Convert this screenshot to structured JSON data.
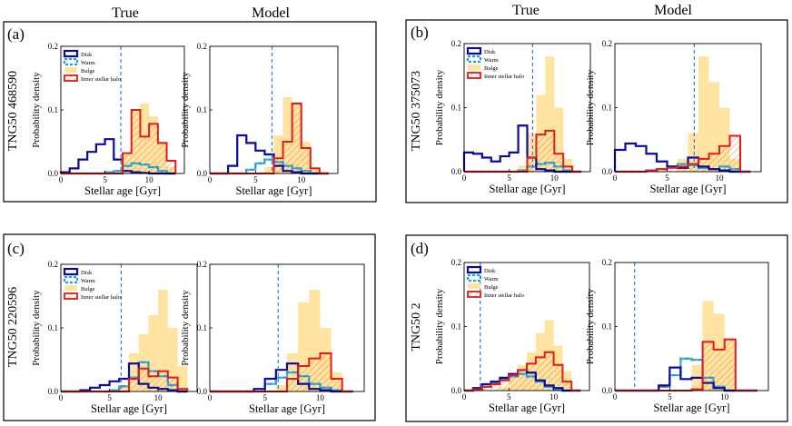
{
  "column_headers": [
    {
      "true": "True",
      "model": "Model"
    },
    {
      "true": "True",
      "model": "Model"
    }
  ],
  "colors": {
    "disk": "#0a0a9e",
    "warm": "#1e9fe8",
    "bulge": "#ffe3a0",
    "halo": "#e51a1a",
    "cut": "#3a7bd5",
    "teal": "#4aa3a0"
  },
  "chart_data": [
    {
      "panel": "(a)",
      "galaxy": "TNG50 468590",
      "type": "histogram",
      "xlabel": "Stellar age [Gyr]",
      "ylabel": "Probability density",
      "xlim": [
        0,
        14
      ],
      "ylim": [
        0,
        0.2
      ],
      "xticks": [
        "0",
        "5",
        "10"
      ],
      "yticks": [
        "0.0",
        "0.1",
        "0.2"
      ],
      "legend": [
        "Disk",
        "Warm",
        "Bulge",
        "Inner stellar halo"
      ],
      "bin_edges": [
        0,
        1,
        2,
        3,
        4,
        5,
        6,
        7,
        8,
        9,
        10,
        11,
        12,
        13
      ],
      "true": {
        "cut": 6.8,
        "disk": [
          0.002,
          0.008,
          0.022,
          0.034,
          0.046,
          0.054,
          0.022,
          0.004,
          0.002,
          0.001,
          0,
          0,
          0
        ],
        "warm": [
          0,
          0,
          0,
          0,
          0,
          0.002,
          0.004,
          0.012,
          0.016,
          0.014,
          0.01,
          0.004,
          0
        ],
        "bulge": [
          0,
          0,
          0,
          0,
          0,
          0,
          0.005,
          0.03,
          0.1,
          0.11,
          0.09,
          0.05,
          0.01
        ],
        "halo": [
          0,
          0,
          0,
          0,
          0,
          0,
          0,
          0.032,
          0.1,
          0.058,
          0.078,
          0.048,
          0.02
        ]
      },
      "model": {
        "cut": 6.8,
        "disk": [
          0,
          0,
          0.012,
          0.06,
          0.048,
          0.036,
          0.03,
          0.012,
          0.004,
          0.002,
          0,
          0,
          0
        ],
        "warm": [
          0,
          0,
          0,
          0,
          0.006,
          0.016,
          0.022,
          0.018,
          0.012,
          0.008,
          0.004,
          0,
          0
        ],
        "bulge": [
          0,
          0,
          0,
          0,
          0,
          0,
          0.01,
          0.06,
          0.12,
          0.11,
          0.05,
          0.01,
          0
        ],
        "halo": [
          0,
          0,
          0,
          0,
          0,
          0,
          0,
          0.024,
          0.05,
          0.11,
          0.04,
          0.008,
          0
        ]
      }
    },
    {
      "panel": "(b)",
      "galaxy": "TNG50 375073",
      "type": "histogram",
      "xlabel": "Stellar age [Gyr]",
      "ylabel": "Probability density",
      "xlim": [
        0,
        14
      ],
      "ylim": [
        0,
        0.2
      ],
      "xticks": [
        "0",
        "5",
        "10"
      ],
      "yticks": [
        "0.0",
        "0.1",
        "0.2"
      ],
      "legend": [
        "Disk",
        "Warm",
        "Bulge",
        "Inner stellar halo"
      ],
      "bin_edges": [
        0,
        1,
        2,
        3,
        4,
        5,
        6,
        7,
        8,
        9,
        10,
        11,
        12,
        13
      ],
      "true": {
        "cut": 7.6,
        "disk": [
          0.03,
          0.028,
          0.022,
          0.016,
          0.024,
          0.03,
          0.072,
          0.022,
          0.004,
          0.002,
          0,
          0,
          0
        ],
        "warm": [
          0,
          0,
          0,
          0,
          0,
          0,
          0.002,
          0.008,
          0.012,
          0.014,
          0.008,
          0.002,
          0
        ],
        "bulge": [
          0,
          0,
          0,
          0,
          0,
          0,
          0.01,
          0.06,
          0.12,
          0.18,
          0.1,
          0.02,
          0
        ],
        "halo": [
          0,
          0,
          0,
          0,
          0,
          0,
          0,
          0.022,
          0.058,
          0.064,
          0.028,
          0.008,
          0
        ]
      },
      "model": {
        "cut": 7.6,
        "disk": [
          0.034,
          0.044,
          0.04,
          0.028,
          0.016,
          0.008,
          0.006,
          0.022,
          0.008,
          0.004,
          0.002,
          0,
          0
        ],
        "warm": [
          0,
          0,
          0,
          0.002,
          0.004,
          0.008,
          0.012,
          0.01,
          0.006,
          0.004,
          0.008,
          0.004,
          0
        ],
        "bulge": [
          0,
          0,
          0,
          0,
          0,
          0,
          0.02,
          0.06,
          0.18,
          0.14,
          0.1,
          0.02,
          0
        ],
        "halo": [
          0,
          0,
          0,
          0.002,
          0.004,
          0.006,
          0.008,
          0.012,
          0.02,
          0.028,
          0.04,
          0.056,
          0
        ]
      }
    },
    {
      "panel": "(c)",
      "galaxy": "TNG50 220596",
      "type": "histogram",
      "xlabel": "Stellar age [Gyr]",
      "ylabel": "Probability density",
      "xlim": [
        0,
        14
      ],
      "ylim": [
        0,
        0.2
      ],
      "xticks": [
        "0",
        "5",
        "10"
      ],
      "yticks": [
        "0.0",
        "0.1",
        "0.2"
      ],
      "legend": [
        "Disk",
        "Warm",
        "Bulge",
        "Inner stellar halo"
      ],
      "bin_edges": [
        0,
        1,
        2,
        3,
        4,
        5,
        6,
        7,
        8,
        9,
        10,
        11,
        12,
        13
      ],
      "true": {
        "cut": 6.2,
        "disk": [
          0,
          0,
          0.002,
          0.006,
          0.01,
          0.016,
          0.02,
          0.044,
          0.012,
          0.006,
          0.004,
          0.002,
          0
        ],
        "warm": [
          0,
          0,
          0,
          0,
          0,
          0.002,
          0.008,
          0.022,
          0.046,
          0.032,
          0.024,
          0.01,
          0
        ],
        "bulge": [
          0,
          0,
          0,
          0,
          0,
          0,
          0.01,
          0.06,
          0.09,
          0.12,
          0.16,
          0.1,
          0.04
        ],
        "halo": [
          0,
          0,
          0,
          0,
          0,
          0,
          0,
          0.02,
          0.036,
          0.024,
          0.032,
          0.022,
          0.004
        ]
      },
      "model": {
        "cut": 6.2,
        "disk": [
          0,
          0,
          0,
          0,
          0.004,
          0.02,
          0.034,
          0.044,
          0.012,
          0.004,
          0.002,
          0,
          0
        ],
        "warm": [
          0,
          0,
          0,
          0,
          0,
          0.012,
          0.022,
          0.03,
          0.024,
          0.012,
          0.006,
          0.002,
          0
        ],
        "bulge": [
          0,
          0,
          0,
          0,
          0,
          0,
          0.01,
          0.06,
          0.14,
          0.16,
          0.1,
          0.03,
          0
        ],
        "halo": [
          0,
          0,
          0,
          0,
          0,
          0,
          0,
          0.02,
          0.04,
          0.052,
          0.06,
          0.02,
          0
        ]
      }
    },
    {
      "panel": "(d)",
      "galaxy": "TNG50 2",
      "type": "histogram",
      "xlabel": "Stellar age [Gyr]",
      "ylabel": "Probability density",
      "xlim": [
        0,
        14
      ],
      "ylim": [
        0,
        0.2
      ],
      "xticks": [
        "0",
        "5",
        "10"
      ],
      "yticks": [
        "0.0",
        "0.1",
        "0.2"
      ],
      "legend": [
        "Disk",
        "Warm",
        "Bulge",
        "Inner stellar halo"
      ],
      "bin_edges": [
        0,
        1,
        2,
        3,
        4,
        5,
        6,
        7,
        8,
        9,
        10,
        11,
        12,
        13
      ],
      "true": {
        "cut": 1.8,
        "disk": [
          0,
          0.004,
          0.01,
          0.014,
          0.02,
          0.026,
          0.032,
          0.028,
          0.016,
          0.008,
          0.004,
          0,
          0
        ],
        "warm": [
          0,
          0.002,
          0.006,
          0.012,
          0.018,
          0.022,
          0.026,
          0.022,
          0.014,
          0.006,
          0.002,
          0,
          0
        ],
        "bulge": [
          0,
          0,
          0,
          0,
          0.006,
          0.02,
          0.04,
          0.06,
          0.09,
          0.11,
          0.07,
          0.03,
          0
        ],
        "halo": [
          0,
          0.002,
          0.006,
          0.01,
          0.016,
          0.024,
          0.032,
          0.042,
          0.052,
          0.06,
          0.04,
          0.014,
          0
        ]
      },
      "model": {
        "cut": 1.8,
        "disk": [
          0,
          0,
          0,
          0,
          0.008,
          0.036,
          0.018,
          0.02,
          0.012,
          0.004,
          0,
          0,
          0
        ],
        "warm": [
          0,
          0,
          0,
          0,
          0.006,
          0.024,
          0.05,
          0.048,
          0.02,
          0.006,
          0,
          0,
          0
        ],
        "bulge": [
          0,
          0,
          0,
          0,
          0,
          0,
          0,
          0.04,
          0.14,
          0.12,
          0.08,
          0,
          0
        ],
        "halo": [
          0,
          0,
          0,
          0,
          0,
          0,
          0,
          0.002,
          0.076,
          0.064,
          0.08,
          0,
          0
        ]
      }
    }
  ]
}
